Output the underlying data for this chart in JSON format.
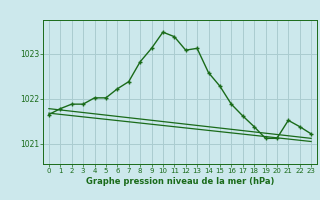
{
  "title": "Graphe pression niveau de la mer (hPa)",
  "background_color": "#cce8ec",
  "grid_color": "#aaccd0",
  "line_color": "#1a6b1a",
  "xlim": [
    -0.5,
    23.5
  ],
  "ylim": [
    1020.55,
    1023.75
  ],
  "yticks": [
    1021,
    1022,
    1023
  ],
  "xticks": [
    0,
    1,
    2,
    3,
    4,
    5,
    6,
    7,
    8,
    9,
    10,
    11,
    12,
    13,
    14,
    15,
    16,
    17,
    18,
    19,
    20,
    21,
    22,
    23
  ],
  "series1": {
    "x": [
      0,
      1,
      2,
      3,
      4,
      5,
      6,
      7,
      8,
      9,
      10,
      11,
      12,
      13,
      14,
      15,
      16,
      17,
      18,
      19,
      20,
      21,
      22,
      23
    ],
    "y": [
      1021.65,
      1021.78,
      1021.88,
      1021.88,
      1022.02,
      1022.02,
      1022.22,
      1022.38,
      1022.82,
      1023.12,
      1023.48,
      1023.38,
      1023.08,
      1023.12,
      1022.58,
      1022.28,
      1021.88,
      1021.62,
      1021.38,
      1021.12,
      1021.12,
      1021.52,
      1021.38,
      1021.22
    ]
  },
  "series2": {
    "x": [
      0,
      23
    ],
    "y": [
      1021.78,
      1021.12
    ]
  },
  "series3": {
    "x": [
      0,
      23
    ],
    "y": [
      1021.68,
      1021.05
    ]
  }
}
